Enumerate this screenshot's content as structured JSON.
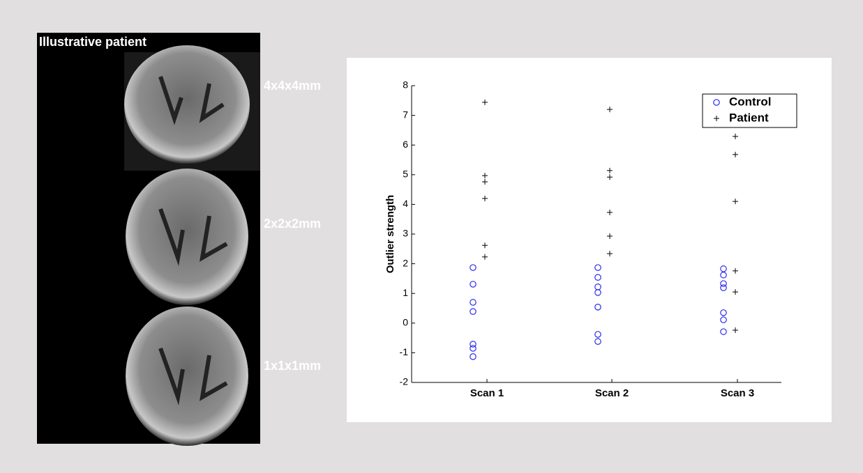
{
  "image_panel": {
    "title": "Illustrative patient",
    "labels": [
      "4x4x4mm",
      "2x2x2mm",
      "1x1x1mm"
    ]
  },
  "chart_data": {
    "type": "scatter",
    "y_label": "Outlier strength",
    "categories": [
      "Scan 1",
      "Scan 2",
      "Scan 3"
    ],
    "series": [
      {
        "name": "Control",
        "color": "#2a2af0",
        "marker": "circle",
        "values": [
          [
            1.87,
            1.31,
            0.7,
            0.39,
            -0.71,
            -0.85,
            -1.13
          ],
          [
            1.87,
            1.54,
            1.22,
            1.03,
            0.54,
            -0.38,
            -0.62
          ],
          [
            1.83,
            1.62,
            1.33,
            1.19,
            0.35,
            0.11,
            -0.29
          ]
        ]
      },
      {
        "name": "Patient",
        "color": "#000000",
        "marker": "plus",
        "values": [
          [
            7.44,
            4.97,
            4.76,
            4.2,
            2.62,
            2.23
          ],
          [
            7.2,
            5.14,
            4.92,
            3.73,
            2.93,
            2.34
          ],
          [
            6.29,
            5.68,
            4.1,
            1.76,
            1.05,
            -0.24
          ]
        ]
      }
    ],
    "ylim": [
      -2,
      8
    ],
    "yticks": [
      -2,
      -1,
      0,
      1,
      2,
      3,
      4,
      5,
      6,
      7,
      8
    ],
    "legend": "top-right"
  }
}
